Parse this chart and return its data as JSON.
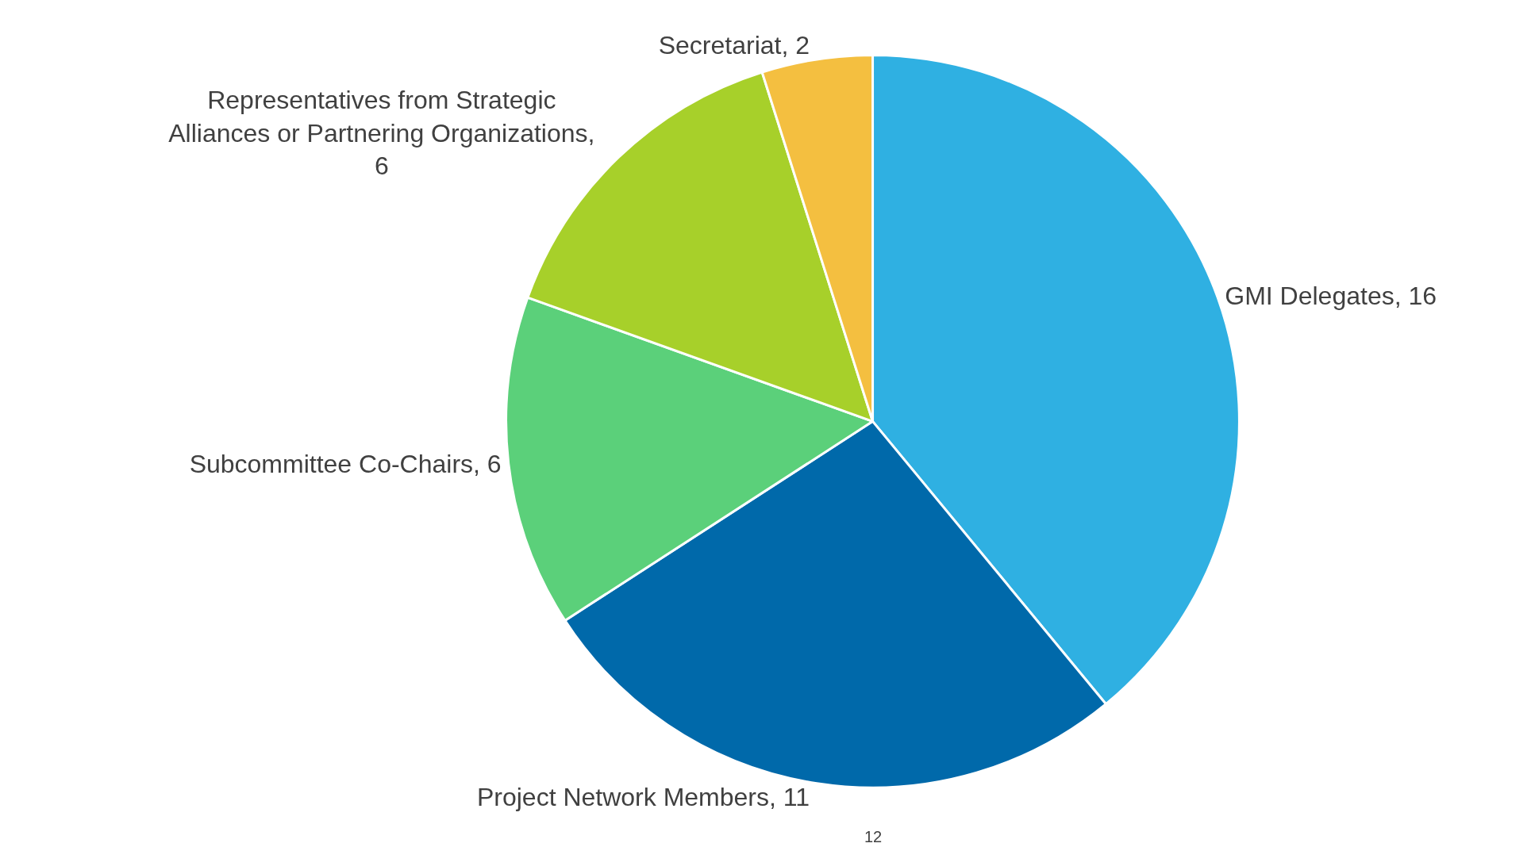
{
  "chart_data": {
    "type": "pie",
    "categories": [
      "GMI Delegates, 16",
      "Project Network Members, 11",
      "Subcommittee Co-Chairs, 6",
      "Representatives from Strategic Alliances or Partnering Organizations, 6",
      "Secretariat, 2"
    ],
    "values": [
      16,
      11,
      6,
      6,
      2
    ],
    "colors": [
      "#2fb0e2",
      "#0069aa",
      "#5bd07a",
      "#a7d02a",
      "#f4bf40"
    ],
    "legend": false,
    "annotations": [
      "12"
    ]
  }
}
